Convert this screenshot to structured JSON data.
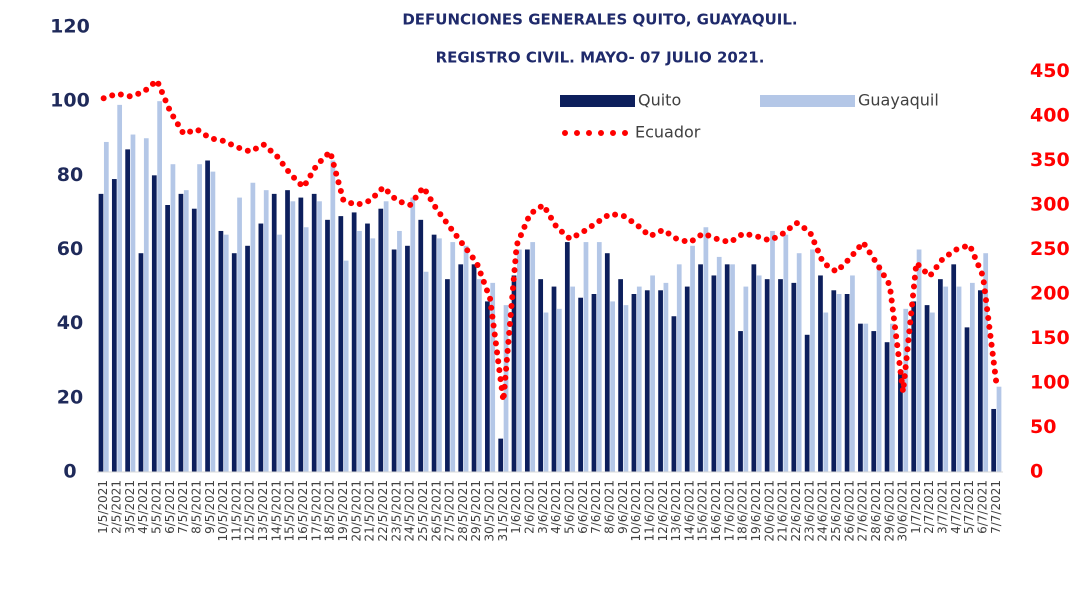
{
  "chart_data": {
    "type": "bar_line",
    "title": [
      "DEFUNCIONES GENERALES QUITO, GUAYAQUIL.",
      "REGISTRO CIVIL.  MAYO- 07 JULIO 2021."
    ],
    "categories": [
      "1/5/2021",
      "2/5/2021",
      "3/5/2021",
      "4/5/2021",
      "5/5/2021",
      "6/5/2021",
      "7/5/2021",
      "8/5/2021",
      "9/5/2021",
      "10/5/2021",
      "11/5/2021",
      "12/5/2021",
      "13/5/2021",
      "14/5/2021",
      "15/5/2021",
      "16/5/2021",
      "17/5/2021",
      "18/5/2021",
      "19/5/2021",
      "20/5/2021",
      "21/5/2021",
      "22/5/2021",
      "23/5/2021",
      "24/5/2021",
      "25/5/2021",
      "26/5/2021",
      "27/5/2021",
      "28/5/2021",
      "29/5/2021",
      "30/5/2021",
      "31/5/2021",
      "1/6/2021",
      "2/6/2021",
      "3/6/2021",
      "4/6/2021",
      "5/6/2021",
      "6/6/2021",
      "7/6/2021",
      "8/6/2021",
      "9/6/2021",
      "10/6/2021",
      "11/6/2021",
      "12/6/2021",
      "13/6/2021",
      "14/6/2021",
      "15/6/2021",
      "16/6/2021",
      "17/6/2021",
      "18/6/2021",
      "19/6/2021",
      "20/6/2021",
      "21/6/2021",
      "22/6/2021",
      "23/6/2021",
      "24/6/2021",
      "25/6/2021",
      "26/6/2021",
      "27/6/2021",
      "28/6/2021",
      "29/6/2021",
      "30/6/2021",
      "1/7/2021",
      "2/7/2021",
      "3/7/2021",
      "4/7/2021",
      "5/7/2021",
      "6/7/2021",
      "7/7/2021"
    ],
    "series": [
      {
        "name": "Quito",
        "color": "#0d1f5c",
        "values": [
          75,
          79,
          87,
          59,
          80,
          72,
          75,
          71,
          84,
          65,
          59,
          61,
          67,
          75,
          76,
          74,
          75,
          68,
          69,
          70,
          67,
          71,
          60,
          61,
          68,
          64,
          52,
          56,
          56,
          46,
          9,
          53,
          60,
          52,
          50,
          62,
          47,
          48,
          59,
          52,
          48,
          49,
          49,
          42,
          50,
          56,
          53,
          56,
          38,
          56,
          52,
          52,
          51,
          37,
          53,
          49,
          48,
          40,
          38,
          35,
          27,
          46,
          45,
          52,
          56,
          39,
          49,
          17
        ]
      },
      {
        "name": "Guayaquil",
        "color": "#b4c7e7",
        "values": [
          89,
          99,
          91,
          90,
          100,
          83,
          76,
          83,
          81,
          64,
          74,
          78,
          76,
          64,
          73,
          66,
          73,
          84,
          57,
          65,
          63,
          73,
          65,
          74,
          54,
          63,
          62,
          61,
          52,
          51,
          45,
          60,
          62,
          43,
          44,
          50,
          62,
          62,
          46,
          45,
          50,
          53,
          51,
          56,
          61,
          66,
          58,
          56,
          50,
          53,
          65,
          64,
          59,
          60,
          43,
          48,
          53,
          40,
          56,
          40,
          44,
          60,
          43,
          50,
          50,
          51,
          59,
          23
        ]
      },
      {
        "name": "Ecuador",
        "color": "#ff0000",
        "axis": "y2",
        "values": [
          420,
          425,
          422,
          427,
          440,
          405,
          380,
          385,
          375,
          372,
          365,
          360,
          368,
          355,
          335,
          320,
          345,
          360,
          305,
          300,
          305,
          320,
          305,
          300,
          320,
          295,
          275,
          255,
          235,
          195,
          80,
          255,
          290,
          300,
          275,
          262,
          270,
          280,
          290,
          288,
          278,
          265,
          272,
          262,
          258,
          268,
          262,
          258,
          268,
          265,
          260,
          268,
          280,
          270,
          235,
          225,
          240,
          258,
          235,
          210,
          90,
          235,
          220,
          240,
          250,
          255,
          220,
          100
        ]
      }
    ],
    "ylim": [
      0,
      120
    ],
    "yticks": [
      0,
      20,
      40,
      60,
      80,
      100,
      120
    ],
    "y2lim": [
      0,
      500
    ],
    "y2ticks": [
      0,
      50,
      100,
      150,
      200,
      250,
      300,
      350,
      400,
      450
    ],
    "legend": "top-right"
  }
}
